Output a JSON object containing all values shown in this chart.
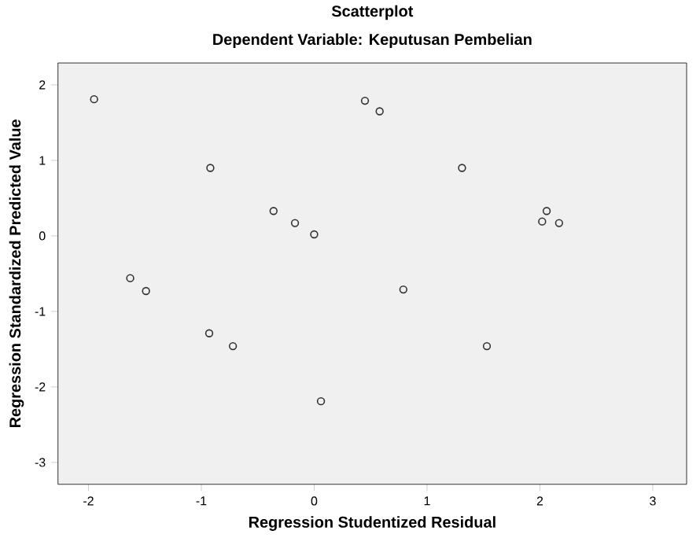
{
  "chart_data": {
    "type": "scatter",
    "title": "Scatterplot",
    "subtitle": "Dependent Variable: Keputusan Pembelian",
    "xlabel": "Regression Studentized Residual",
    "ylabel": "Regression Standardized Predicted Value",
    "x": [
      -1.95,
      -0.92,
      -0.36,
      -0.17,
      0.0,
      0.45,
      0.58,
      1.31,
      2.06,
      2.02,
      2.17,
      -1.63,
      -1.49,
      -0.93,
      -0.72,
      0.06,
      0.79,
      1.53
    ],
    "values": [
      1.81,
      0.9,
      0.33,
      0.17,
      0.02,
      1.79,
      1.65,
      0.9,
      0.33,
      0.19,
      0.17,
      -0.56,
      -0.73,
      -1.29,
      -1.46,
      -2.19,
      -0.71,
      -1.46
    ],
    "color": "#333333",
    "marker": "circle",
    "xlim": [
      -2.27,
      3.3
    ],
    "ylim": [
      -3.29,
      2.29
    ],
    "xticks": [
      -2,
      -1,
      0,
      1,
      2,
      3
    ],
    "yticks": [
      -3,
      -2,
      -1,
      0,
      1,
      2
    ],
    "grid": false
  }
}
